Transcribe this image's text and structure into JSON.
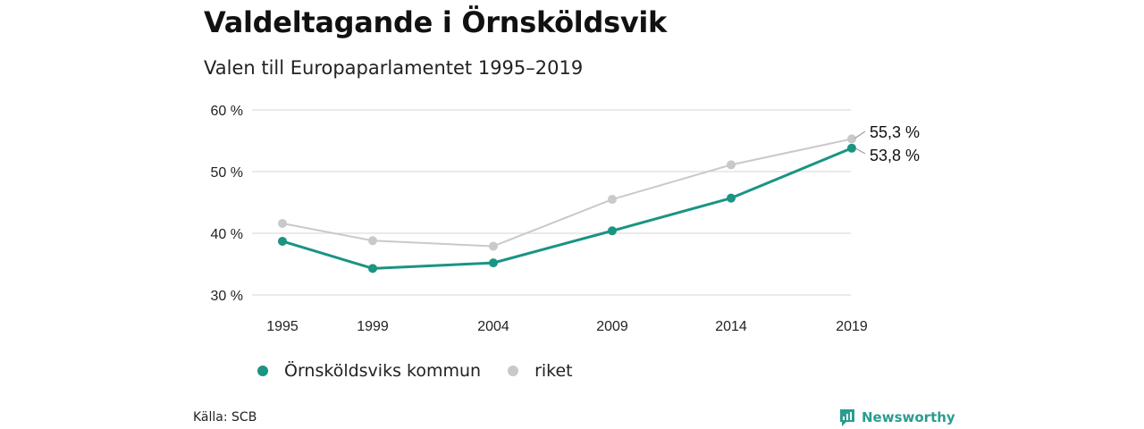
{
  "title": "Valdeltagande i Örnsköldsvik",
  "subtitle": "Valen till Europaparlamentet 1995–2019",
  "source": "Källa: SCB",
  "brand": "Newsworthy",
  "colors": {
    "kommun": "#1a9483",
    "riket": "#c9c9c9",
    "grid": "#dddddd",
    "brand": "#2a9d8f"
  },
  "chart_data": {
    "type": "line",
    "x": [
      "1995",
      "1999",
      "2004",
      "2009",
      "2014",
      "2019"
    ],
    "y_ticks": [
      "60 %",
      "50 %",
      "40 %",
      "30 %"
    ],
    "y_tick_values": [
      60,
      50,
      40,
      30
    ],
    "ylim": [
      30,
      60
    ],
    "grid": true,
    "legend_position": "bottom",
    "series": [
      {
        "name": "Örnsköldsviks kommun",
        "values": [
          38.7,
          34.3,
          35.2,
          40.4,
          45.7,
          53.8
        ],
        "end_label": "53,8 %"
      },
      {
        "name": "riket",
        "values": [
          41.6,
          38.8,
          37.9,
          45.5,
          51.1,
          55.3
        ],
        "end_label": "55,3 %"
      }
    ]
  }
}
